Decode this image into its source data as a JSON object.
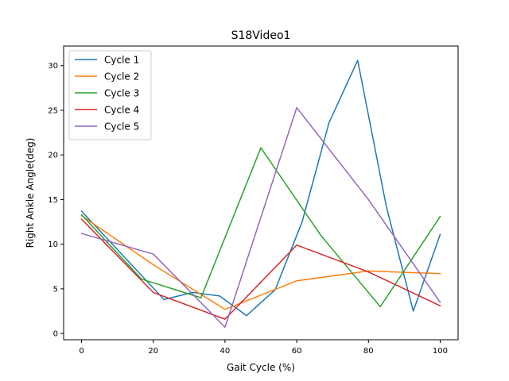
{
  "chart_data": {
    "type": "line",
    "title": "S18Video1",
    "xlabel": "Gait Cycle (%)",
    "ylabel": "Right Ankle Angle(deg)",
    "xlim": [
      -5,
      105
    ],
    "ylim": [
      -0.7,
      32.2
    ],
    "xticks": [
      0,
      20,
      40,
      60,
      80,
      100
    ],
    "yticks": [
      0,
      5,
      10,
      15,
      20,
      25,
      30
    ],
    "legend_position": "top-left",
    "grid": false,
    "series": [
      {
        "name": "Cycle 1",
        "color": "#1f77b4",
        "x": [
          0,
          23,
          31,
          38.5,
          46,
          54,
          61.5,
          69,
          77,
          85,
          92.5,
          100
        ],
        "y": [
          13.7,
          3.8,
          4.6,
          4.2,
          2.0,
          4.9,
          12.5,
          23.6,
          30.6,
          14.2,
          2.5,
          11.1
        ]
      },
      {
        "name": "Cycle 2",
        "color": "#ff7f0e",
        "x": [
          0,
          20,
          40,
          60,
          80,
          100
        ],
        "y": [
          13.2,
          7.7,
          2.7,
          5.9,
          7.0,
          6.7
        ]
      },
      {
        "name": "Cycle 3",
        "color": "#2ca02c",
        "x": [
          0,
          16.7,
          33.3,
          50,
          66.7,
          83.3,
          100
        ],
        "y": [
          13.3,
          6.1,
          4.0,
          20.8,
          11.0,
          3.0,
          13.1
        ]
      },
      {
        "name": "Cycle 4",
        "color": "#d62728",
        "x": [
          0,
          20,
          40,
          60,
          80,
          100
        ],
        "y": [
          12.8,
          4.6,
          1.6,
          9.9,
          6.9,
          3.1
        ]
      },
      {
        "name": "Cycle 5",
        "color": "#9467bd",
        "x": [
          0,
          20,
          40,
          60,
          80,
          100
        ],
        "y": [
          11.2,
          8.9,
          0.7,
          25.3,
          15.0,
          3.5
        ]
      }
    ]
  }
}
